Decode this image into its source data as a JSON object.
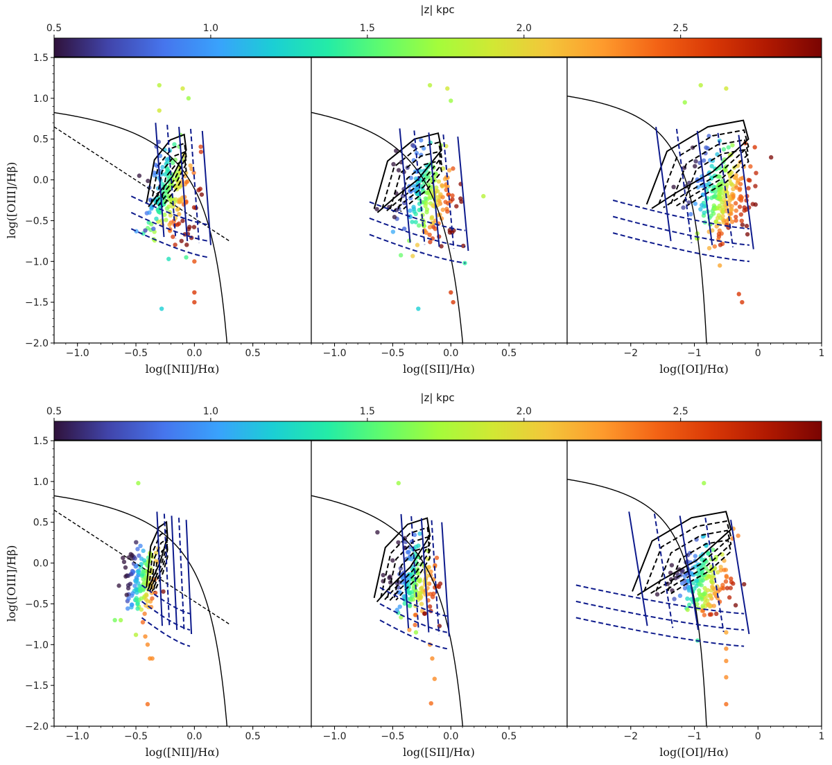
{
  "colormap": [
    "#30123b",
    "#4145ab",
    "#4675ed",
    "#39a2fc",
    "#1bcfd4",
    "#24eca6",
    "#61fc6c",
    "#a4fc3b",
    "#d1e834",
    "#f3c63a",
    "#fe9b2d",
    "#f36315",
    "#d93806",
    "#b11901",
    "#7a0402"
  ],
  "panel_frame_color": "#000000",
  "chart_data": [
    {
      "type": "colorbar",
      "label": "|z| kpc",
      "range": [
        0.5,
        2.95
      ],
      "ticks": [
        0.5,
        1.0,
        1.5,
        2.0,
        2.5
      ],
      "tick_labels": [
        "0.5",
        "1.0",
        "1.5",
        "2.0",
        "2.5"
      ]
    },
    {
      "type": "scatter",
      "row": 1,
      "col": 1,
      "xlabel": "log([NII]/Hα)",
      "ylabel": "log([OIII]/Hβ)",
      "xlim": [
        -1.2,
        1.0
      ],
      "ylim": [
        -2.0,
        1.5
      ],
      "xticks": [
        -1.0,
        -0.5,
        0.0,
        0.5
      ],
      "xtick_labels": [
        "−1.0",
        "−0.5",
        "0.0",
        "0.5"
      ],
      "yticks": [
        1.5,
        1.0,
        0.5,
        0.0,
        -0.5,
        -1.0,
        -1.5,
        -2.0
      ],
      "ytick_labels": [
        "1.5",
        "1.0",
        "0.5",
        "0.0",
        "−0.5",
        "−1.0",
        "−1.5",
        "−2.0"
      ],
      "cloud": {
        "cx": -0.2,
        "cy": -0.15,
        "sx": 0.11,
        "sy": 0.28,
        "n": 190,
        "seed": 11,
        "z_shift": 0.35
      },
      "points": [
        [
          -0.3,
          1.16,
          1.8
        ],
        [
          -0.1,
          1.12,
          1.9
        ],
        [
          -0.05,
          1.0,
          1.7
        ],
        [
          -0.07,
          -0.95,
          1.45
        ],
        [
          0.0,
          -1.0,
          2.5
        ],
        [
          0.0,
          -1.38,
          2.6
        ],
        [
          0.0,
          -1.5,
          2.6
        ],
        [
          -0.28,
          -1.58,
          1.2
        ],
        [
          -0.35,
          -0.6,
          0.8
        ],
        [
          -0.42,
          -0.62,
          0.7
        ],
        [
          -0.22,
          -0.97,
          1.3
        ],
        [
          -0.3,
          0.85,
          1.9
        ]
      ],
      "curves": {
        "kewley": {
          "type": "kewley",
          "a": 0.61,
          "b": 0.47,
          "c": 1.19,
          "x_max": 0.3
        },
        "kauffmann": {
          "type": "line",
          "x0": -1.2,
          "y0": 0.65,
          "x1": 0.3,
          "y1": -0.75
        },
        "black_contour": {
          "cx": -0.24,
          "cy": 0.08,
          "w": 0.34,
          "h": 0.82
        },
        "blue_grid_start": -0.3,
        "blue_grid_end": 0.1
      }
    },
    {
      "type": "scatter",
      "row": 1,
      "col": 2,
      "xlabel": "log([SII]/Hα)",
      "xlim": [
        -1.2,
        1.0
      ],
      "ylim": [
        -2.0,
        1.5
      ],
      "xticks": [
        -1.0,
        -0.5,
        0.0,
        0.5
      ],
      "xtick_labels": [
        "−1.0",
        "−0.5",
        "0.0",
        "0.5"
      ],
      "cloud": {
        "cx": -0.2,
        "cy": -0.22,
        "sx": 0.12,
        "sy": 0.28,
        "n": 200,
        "seed": 23,
        "z_shift": 0.3
      },
      "points": [
        [
          -0.18,
          1.16,
          1.8
        ],
        [
          -0.03,
          1.12,
          1.9
        ],
        [
          0.0,
          0.97,
          1.7
        ],
        [
          0.28,
          -0.2,
          1.8
        ],
        [
          0.12,
          -1.02,
          1.4
        ],
        [
          0.0,
          -1.38,
          2.6
        ],
        [
          0.02,
          -1.5,
          2.6
        ],
        [
          -0.28,
          -1.58,
          1.2
        ],
        [
          -0.4,
          -0.6,
          0.8
        ]
      ],
      "curves": {
        "kewley": {
          "type": "kewley",
          "a": 0.72,
          "b": 0.32,
          "c": 1.3,
          "x_max": 0.12
        },
        "black_contour": {
          "cx": -0.37,
          "cy": 0.05,
          "w": 0.58,
          "h": 0.9
        },
        "blue_grid_start": -0.4,
        "blue_grid_end": 0.1
      }
    },
    {
      "type": "scatter",
      "row": 1,
      "col": 3,
      "xlabel": "log([OI]/Hα)",
      "xlim": [
        -3.0,
        1.0
      ],
      "ylim": [
        -2.0,
        1.5
      ],
      "xticks": [
        -2,
        -1,
        0,
        1
      ],
      "xtick_labels": [
        "−2",
        "−1",
        "0",
        "1"
      ],
      "cloud": {
        "cx": -0.55,
        "cy": -0.2,
        "sx": 0.25,
        "sy": 0.28,
        "n": 240,
        "seed": 37,
        "z_shift": 0.5
      },
      "points": [
        [
          -0.9,
          1.16,
          1.8
        ],
        [
          -0.5,
          1.12,
          1.9
        ],
        [
          -1.15,
          0.95,
          1.7
        ],
        [
          -0.2,
          0.45,
          2.6
        ],
        [
          -0.05,
          0.4,
          2.6
        ],
        [
          -0.3,
          -1.4,
          2.6
        ],
        [
          -0.25,
          -1.5,
          2.6
        ],
        [
          -0.6,
          -1.05,
          2.2
        ]
      ],
      "curves": {
        "kewley": {
          "type": "kewley",
          "a": 0.73,
          "b": -0.59,
          "c": 1.33,
          "x_max": -0.8
        },
        "black_contour": {
          "cx": -0.95,
          "cy": 0.15,
          "w": 1.6,
          "h": 1.0
        },
        "blue_grid_start": -1.5,
        "blue_grid_end": -0.2
      }
    },
    {
      "type": "colorbar",
      "label": "|z| kpc",
      "range": [
        0.5,
        2.95
      ],
      "ticks": [
        0.5,
        1.0,
        1.5,
        2.0,
        2.5
      ],
      "tick_labels": [
        "0.5",
        "1.0",
        "1.5",
        "2.0",
        "2.5"
      ]
    },
    {
      "type": "scatter",
      "row": 2,
      "col": 1,
      "xlabel": "log([NII]/Hα)",
      "ylabel": "log([OIII]/Hβ)",
      "xlim": [
        -1.2,
        1.0
      ],
      "ylim": [
        -2.0,
        1.5
      ],
      "xticks": [
        -1.0,
        -0.5,
        0.0,
        0.5
      ],
      "xtick_labels": [
        "−1.0",
        "−0.5",
        "0.0",
        "0.5"
      ],
      "yticks": [
        1.5,
        1.0,
        0.5,
        0.0,
        -0.5,
        -1.0,
        -1.5,
        -2.0
      ],
      "ytick_labels": [
        "1.5",
        "1.0",
        "0.5",
        "0.0",
        "−0.5",
        "−1.0",
        "−1.5",
        "−2.0"
      ],
      "cloud": {
        "cx": -0.46,
        "cy": -0.22,
        "sx": 0.07,
        "sy": 0.2,
        "n": 140,
        "seed": 51,
        "z_shift": 0.0
      },
      "points": [
        [
          -0.48,
          0.98,
          1.7
        ],
        [
          -0.68,
          -0.7,
          1.6
        ],
        [
          -0.63,
          -0.7,
          1.7
        ],
        [
          -0.42,
          -0.9,
          2.3
        ],
        [
          -0.4,
          -1.0,
          2.3
        ],
        [
          -0.38,
          -1.17,
          2.3
        ],
        [
          -0.36,
          -1.17,
          2.3
        ],
        [
          -0.4,
          -1.73,
          2.4
        ],
        [
          -0.5,
          -0.88,
          1.8
        ]
      ],
      "curves": {
        "kewley": {
          "type": "kewley",
          "a": 0.61,
          "b": 0.47,
          "c": 1.19,
          "x_max": 0.3
        },
        "kauffmann": {
          "type": "line",
          "x0": -1.2,
          "y0": 0.65,
          "x1": 0.3,
          "y1": -0.75
        },
        "black_contour": {
          "cx": -0.32,
          "cy": 0.05,
          "w": 0.18,
          "h": 0.78
        },
        "blue_grid_start": -0.3,
        "blue_grid_end": -0.05
      }
    },
    {
      "type": "scatter",
      "row": 2,
      "col": 2,
      "xlabel": "log([SII]/Hα)",
      "xlim": [
        -1.2,
        1.0
      ],
      "ylim": [
        -2.0,
        1.5
      ],
      "xticks": [
        -1.0,
        -0.5,
        0.0,
        0.5
      ],
      "xtick_labels": [
        "−1.0",
        "−0.5",
        "0.0",
        "0.5"
      ],
      "cloud": {
        "cx": -0.32,
        "cy": -0.25,
        "sx": 0.09,
        "sy": 0.22,
        "n": 170,
        "seed": 67,
        "z_shift": 0.15
      },
      "points": [
        [
          -0.45,
          0.98,
          1.7
        ],
        [
          -0.3,
          -0.85,
          1.7
        ],
        [
          -0.18,
          -1.0,
          2.3
        ],
        [
          -0.16,
          -1.17,
          2.3
        ],
        [
          -0.14,
          -1.42,
          2.3
        ],
        [
          -0.17,
          -1.72,
          2.4
        ],
        [
          -0.15,
          -0.2,
          2.3
        ]
      ],
      "curves": {
        "kewley": {
          "type": "kewley",
          "a": 0.72,
          "b": 0.32,
          "c": 1.3,
          "x_max": 0.12
        },
        "black_contour": {
          "cx": -0.42,
          "cy": 0.0,
          "w": 0.48,
          "h": 0.95
        },
        "blue_grid_start": -0.4,
        "blue_grid_end": -0.05
      }
    },
    {
      "type": "scatter",
      "row": 2,
      "col": 3,
      "xlabel": "log([OI]/Hα)",
      "xlim": [
        -3.0,
        1.0
      ],
      "ylim": [
        -2.0,
        1.5
      ],
      "xticks": [
        -2,
        -1,
        0,
        1
      ],
      "xtick_labels": [
        "−2",
        "−1",
        "0",
        "1"
      ],
      "cloud": {
        "cx": -0.85,
        "cy": -0.22,
        "sx": 0.22,
        "sy": 0.22,
        "n": 190,
        "seed": 83,
        "z_shift": 0.25
      },
      "points": [
        [
          -0.85,
          0.98,
          1.7
        ],
        [
          -0.95,
          -0.95,
          1.4
        ],
        [
          -0.5,
          -0.85,
          2.2
        ],
        [
          -0.5,
          -1.05,
          2.3
        ],
        [
          -0.5,
          -1.2,
          2.3
        ],
        [
          -0.5,
          -1.4,
          2.3
        ],
        [
          -0.5,
          -1.73,
          2.4
        ],
        [
          -0.4,
          0.3,
          2.3
        ]
      ],
      "curves": {
        "kewley": {
          "type": "kewley",
          "a": 0.73,
          "b": -0.59,
          "c": 1.33,
          "x_max": -0.8
        },
        "black_contour": {
          "cx": -1.2,
          "cy": 0.08,
          "w": 1.55,
          "h": 0.95
        },
        "blue_grid_start": -1.9,
        "blue_grid_end": -0.3
      }
    }
  ]
}
